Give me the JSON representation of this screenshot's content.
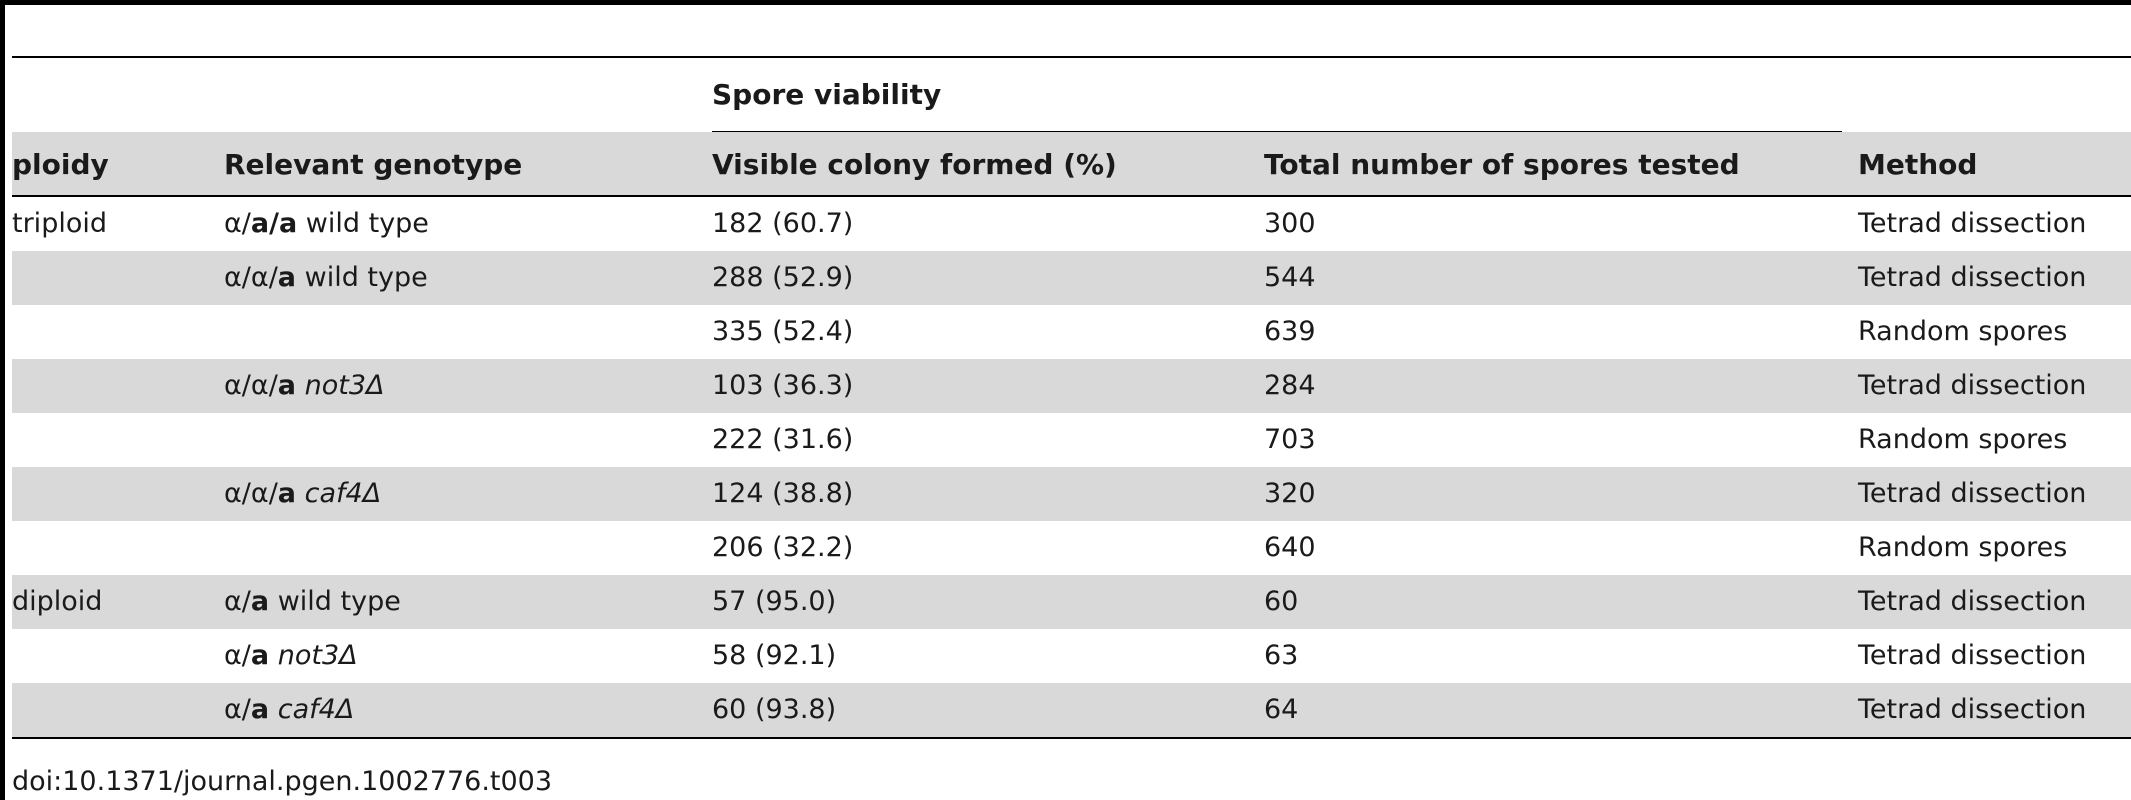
{
  "table": {
    "group_header": "Spore viability",
    "columns": [
      "ploidy",
      "Relevant genotype",
      "Visible colony formed (%)",
      "Total number of spores tested",
      "Method"
    ],
    "rows": [
      {
        "ploidy": "triploid",
        "genotype_prefix": "α/",
        "genotype_bold": "a/a",
        "genotype_rest": " wild type",
        "genotype_italic": "",
        "colony": "182 (60.7)",
        "total": "300",
        "method": "Tetrad dissection"
      },
      {
        "ploidy": "",
        "genotype_prefix": "α/α/",
        "genotype_bold": "a",
        "genotype_rest": " wild type",
        "genotype_italic": "",
        "colony": "288 (52.9)",
        "total": "544",
        "method": "Tetrad dissection"
      },
      {
        "ploidy": "",
        "genotype_prefix": "",
        "genotype_bold": "",
        "genotype_rest": "",
        "genotype_italic": "",
        "colony": "335 (52.4)",
        "total": "639",
        "method": "Random spores"
      },
      {
        "ploidy": "",
        "genotype_prefix": "α/α/",
        "genotype_bold": "a",
        "genotype_rest": " ",
        "genotype_italic": "not3Δ",
        "colony": "103 (36.3)",
        "total": "284",
        "method": "Tetrad dissection"
      },
      {
        "ploidy": "",
        "genotype_prefix": "",
        "genotype_bold": "",
        "genotype_rest": "",
        "genotype_italic": "",
        "colony": "222 (31.6)",
        "total": "703",
        "method": "Random spores"
      },
      {
        "ploidy": "",
        "genotype_prefix": "α/α/",
        "genotype_bold": "a",
        "genotype_rest": " ",
        "genotype_italic": "caf4Δ",
        "colony": "124 (38.8)",
        "total": "320",
        "method": "Tetrad dissection"
      },
      {
        "ploidy": "",
        "genotype_prefix": "",
        "genotype_bold": "",
        "genotype_rest": "",
        "genotype_italic": "",
        "colony": "206 (32.2)",
        "total": "640",
        "method": "Random spores"
      },
      {
        "ploidy": "diploid",
        "genotype_prefix": "α/",
        "genotype_bold": "a",
        "genotype_rest": " wild type",
        "genotype_italic": "",
        "colony": "57 (95.0)",
        "total": "60",
        "method": "Tetrad dissection"
      },
      {
        "ploidy": "",
        "genotype_prefix": "α/",
        "genotype_bold": "a",
        "genotype_rest": " ",
        "genotype_italic": "not3Δ",
        "colony": "58 (92.1)",
        "total": "63",
        "method": "Tetrad dissection"
      },
      {
        "ploidy": "",
        "genotype_prefix": "α/",
        "genotype_bold": "a",
        "genotype_rest": " ",
        "genotype_italic": "caf4Δ",
        "colony": "60 (93.8)",
        "total": "64",
        "method": "Tetrad dissection"
      }
    ]
  },
  "footer": {
    "doi": "doi:10.1371/journal.pgen.1002776.t003"
  },
  "colors": {
    "shade": "#d9d9d9",
    "rule": "#000000"
  }
}
